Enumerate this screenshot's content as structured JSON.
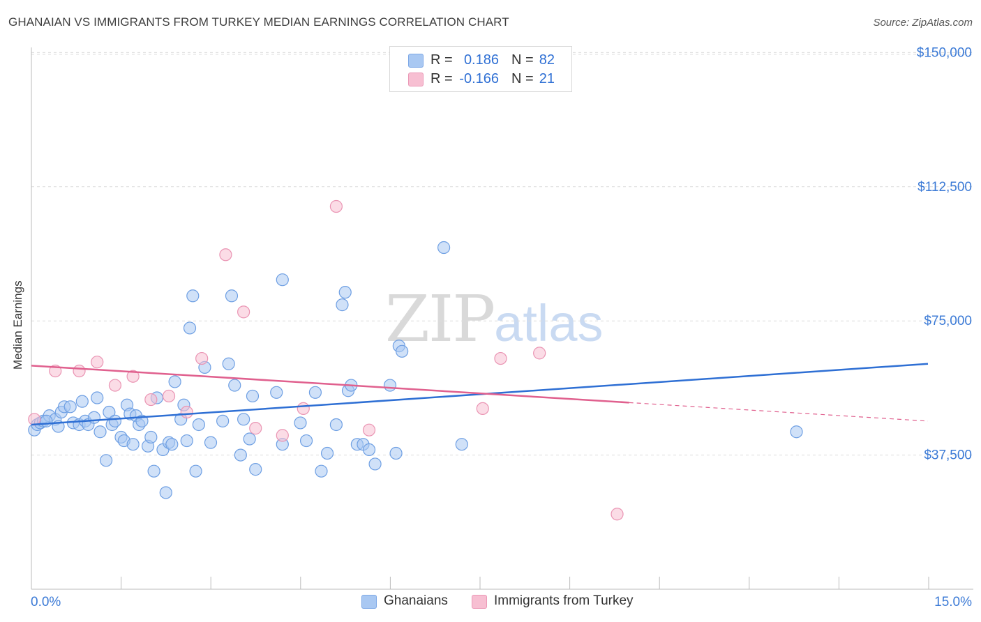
{
  "title": "GHANAIAN VS IMMIGRANTS FROM TURKEY MEDIAN EARNINGS CORRELATION CHART",
  "source": "Source: ZipAtlas.com",
  "colors": {
    "blue": "#2e6fd4",
    "blue_fill": "#a9c8f2",
    "pink": "#e0608e",
    "pink_fill": "#f7bfd2",
    "grid": "#dcdcdc",
    "axis_text": "#3b7ad6"
  },
  "legend_top": {
    "rows": [
      {
        "r_label": "R =",
        "r_value": "0.186",
        "n_label": "N =",
        "n_value": "82"
      },
      {
        "r_label": "R =",
        "r_value": "-0.166",
        "n_label": "N =",
        "n_value": "21"
      }
    ]
  },
  "legend_bottom": {
    "items": [
      "Ghanaians",
      "Immigrants from Turkey"
    ]
  },
  "watermark": {
    "zip": "ZIP",
    "atlas": "atlas"
  },
  "chart_data": {
    "type": "scatter",
    "title": "GHANAIAN VS IMMIGRANTS FROM TURKEY MEDIAN EARNINGS CORRELATION CHART",
    "xlabel": "",
    "ylabel": "Median Earnings",
    "xlim": [
      0,
      15
    ],
    "ylim": [
      0,
      153000
    ],
    "x_tick_labels": [
      "0.0%",
      "15.0%"
    ],
    "y_ticks": [
      37500,
      75000,
      112500,
      150000
    ],
    "y_tick_labels": [
      "$37,500",
      "$75,000",
      "$112,500",
      "$150,000"
    ],
    "grid": "horizontal dashed",
    "legend_position": "bottom-center",
    "series": [
      {
        "name": "Ghanaians",
        "color": "#2e6fd4",
        "trend": {
          "x": [
            0,
            15
          ],
          "y": [
            46000,
            63000
          ],
          "dashed_from": null
        },
        "points": [
          [
            0.05,
            44500
          ],
          [
            0.1,
            46000
          ],
          [
            0.15,
            46500
          ],
          [
            0.2,
            47000
          ],
          [
            0.3,
            48500
          ],
          [
            0.4,
            47500
          ],
          [
            0.45,
            45500
          ],
          [
            0.5,
            49500
          ],
          [
            0.55,
            51000
          ],
          [
            0.65,
            51000
          ],
          [
            0.7,
            46500
          ],
          [
            0.8,
            46000
          ],
          [
            0.85,
            52500
          ],
          [
            0.9,
            47000
          ],
          [
            0.95,
            46000
          ],
          [
            1.05,
            48000
          ],
          [
            1.1,
            53500
          ],
          [
            1.15,
            44000
          ],
          [
            1.25,
            36000
          ],
          [
            1.3,
            49500
          ],
          [
            1.35,
            46000
          ],
          [
            1.4,
            47000
          ],
          [
            1.5,
            42500
          ],
          [
            1.55,
            41500
          ],
          [
            1.6,
            51500
          ],
          [
            1.65,
            49000
          ],
          [
            1.7,
            40500
          ],
          [
            1.75,
            48500
          ],
          [
            1.8,
            46000
          ],
          [
            1.85,
            47000
          ],
          [
            1.95,
            40000
          ],
          [
            2.0,
            42500
          ],
          [
            2.05,
            33000
          ],
          [
            2.1,
            53500
          ],
          [
            2.2,
            39000
          ],
          [
            2.25,
            27000
          ],
          [
            2.3,
            41000
          ],
          [
            2.35,
            40500
          ],
          [
            2.4,
            58000
          ],
          [
            2.5,
            47500
          ],
          [
            2.55,
            51500
          ],
          [
            2.6,
            41500
          ],
          [
            2.65,
            73000
          ],
          [
            2.7,
            82000
          ],
          [
            2.75,
            33000
          ],
          [
            2.8,
            46000
          ],
          [
            2.9,
            62000
          ],
          [
            3.0,
            41000
          ],
          [
            3.2,
            47000
          ],
          [
            3.3,
            63000
          ],
          [
            3.35,
            82000
          ],
          [
            3.4,
            57000
          ],
          [
            3.5,
            37500
          ],
          [
            3.55,
            47500
          ],
          [
            3.65,
            42000
          ],
          [
            3.7,
            54000
          ],
          [
            3.75,
            33500
          ],
          [
            4.1,
            55000
          ],
          [
            4.2,
            86500
          ],
          [
            4.2,
            40500
          ],
          [
            4.5,
            46500
          ],
          [
            4.6,
            41500
          ],
          [
            4.75,
            55000
          ],
          [
            4.85,
            33000
          ],
          [
            4.95,
            38000
          ],
          [
            5.1,
            46000
          ],
          [
            5.2,
            79500
          ],
          [
            5.25,
            83000
          ],
          [
            5.3,
            55500
          ],
          [
            5.35,
            57000
          ],
          [
            5.45,
            40500
          ],
          [
            5.55,
            40500
          ],
          [
            5.65,
            39000
          ],
          [
            5.75,
            35000
          ],
          [
            6.0,
            57000
          ],
          [
            6.1,
            38000
          ],
          [
            6.15,
            68000
          ],
          [
            6.2,
            66500
          ],
          [
            6.9,
            95500
          ],
          [
            7.2,
            40500
          ],
          [
            12.8,
            44000
          ],
          [
            0.25,
            47000
          ]
        ]
      },
      {
        "name": "Immigrants from Turkey",
        "color": "#e0608e",
        "trend": {
          "x": [
            0,
            15
          ],
          "y": [
            62500,
            47000
          ],
          "dashed_from": 10
        },
        "points": [
          [
            0.05,
            47500
          ],
          [
            0.4,
            61000
          ],
          [
            0.8,
            61000
          ],
          [
            1.1,
            63500
          ],
          [
            1.4,
            57000
          ],
          [
            1.7,
            59500
          ],
          [
            2.0,
            53000
          ],
          [
            2.3,
            54000
          ],
          [
            2.6,
            49500
          ],
          [
            2.85,
            64500
          ],
          [
            3.25,
            93500
          ],
          [
            3.55,
            77500
          ],
          [
            3.75,
            45000
          ],
          [
            4.2,
            43000
          ],
          [
            4.55,
            50500
          ],
          [
            5.1,
            107000
          ],
          [
            5.65,
            44500
          ],
          [
            7.55,
            50500
          ],
          [
            7.85,
            64500
          ],
          [
            8.5,
            66000
          ],
          [
            9.8,
            21000
          ]
        ]
      }
    ]
  }
}
